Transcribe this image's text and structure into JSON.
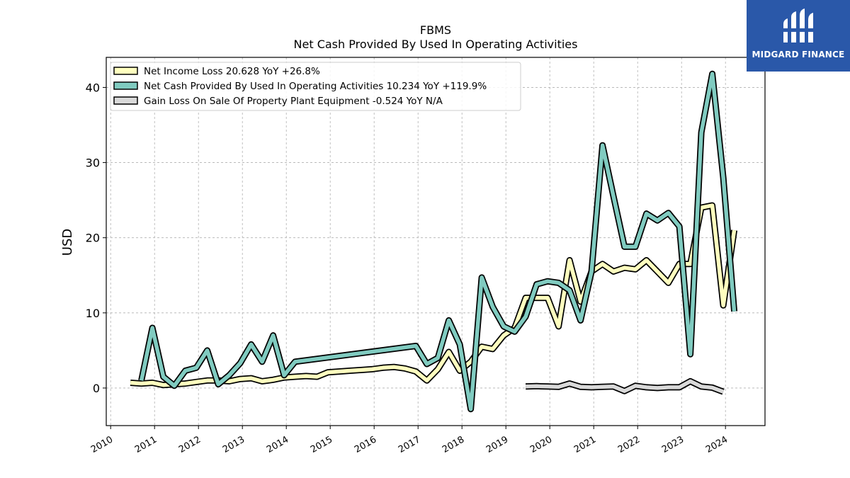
{
  "brand": {
    "name": "MIDGARD FINANCE",
    "icon": "midgard-logo-icon",
    "color": "#2a58a9"
  },
  "chart_data": {
    "type": "line",
    "title": "FBMS",
    "subtitle": "Net Cash Provided By Used In Operating Activities",
    "ylabel": "USD",
    "xlabel": "",
    "xlim": [
      2009.9,
      2024.9
    ],
    "ylim": [
      -5,
      44
    ],
    "yticks": [
      0,
      10,
      20,
      30,
      40
    ],
    "xticks": [
      "2010",
      "2011",
      "2012",
      "2013",
      "2014",
      "2015",
      "2016",
      "2017",
      "2018",
      "2019",
      "2020",
      "2021",
      "2022",
      "2023",
      "2024"
    ],
    "grid": true,
    "legend_position": "top-left",
    "series": [
      {
        "name": "Net Income Loss",
        "legend": "Net Income Loss  20.628 YoY +26.8%",
        "color": "#ffffbf",
        "x": [
          2010.45,
          2010.7,
          2010.95,
          2011.2,
          2011.45,
          2011.7,
          2011.95,
          2012.2,
          2012.45,
          2012.7,
          2012.95,
          2013.2,
          2013.45,
          2013.7,
          2013.95,
          2014.2,
          2014.45,
          2014.7,
          2014.95,
          2015.2,
          2015.45,
          2015.7,
          2015.95,
          2016.2,
          2016.45,
          2016.7,
          2016.95,
          2017.2,
          2017.45,
          2017.7,
          2017.95,
          2018.2,
          2018.45,
          2018.7,
          2018.95,
          2019.2,
          2019.45,
          2019.7,
          2019.95,
          2020.2,
          2020.45,
          2020.7,
          2020.95,
          2021.2,
          2021.45,
          2021.7,
          2021.95,
          2022.2,
          2022.45,
          2022.7,
          2022.95,
          2023.2,
          2023.45,
          2023.7,
          2023.95,
          2024.2
        ],
        "y": [
          0.7,
          0.6,
          0.7,
          0.4,
          0.5,
          0.6,
          0.8,
          1.0,
          1.0,
          0.9,
          1.2,
          1.3,
          0.9,
          1.1,
          1.4,
          1.5,
          1.6,
          1.5,
          2.1,
          2.2,
          2.3,
          2.4,
          2.5,
          2.7,
          2.8,
          2.6,
          2.2,
          1.0,
          2.5,
          4.8,
          2.3,
          3.5,
          5.5,
          5.2,
          7.0,
          8.0,
          12.0,
          12.0,
          12.0,
          8.2,
          17.0,
          11.5,
          15.5,
          16.5,
          15.5,
          16.0,
          15.8,
          17.0,
          15.5,
          14.0,
          16.5,
          16.5,
          24.0,
          24.3,
          11.0,
          21.0
        ]
      },
      {
        "name": "Net Cash Provided By Used In Operating Activities",
        "legend": "Net Cash Provided By Used In Operating Activities  10.234 YoY +119.9%",
        "color": "#80cbc0",
        "x": [
          2010.7,
          2010.95,
          2011.2,
          2011.45,
          2011.7,
          2011.95,
          2012.2,
          2012.45,
          2012.7,
          2012.95,
          2013.2,
          2013.45,
          2013.7,
          2013.95,
          2014.2,
          2016.95,
          2017.2,
          2017.45,
          2017.7,
          2017.95,
          2018.2,
          2018.45,
          2018.7,
          2018.95,
          2019.2,
          2019.45,
          2019.7,
          2019.95,
          2020.2,
          2020.45,
          2020.7,
          2020.95,
          2021.2,
          2021.45,
          2021.7,
          2021.95,
          2022.2,
          2022.45,
          2022.7,
          2022.95,
          2023.2,
          2023.45,
          2023.7,
          2023.95,
          2024.2
        ],
        "y": [
          1.0,
          8.0,
          1.5,
          0.3,
          2.3,
          2.7,
          5.0,
          0.5,
          1.7,
          3.3,
          5.8,
          3.5,
          7.0,
          1.7,
          3.5,
          5.6,
          3.2,
          4.0,
          9.0,
          5.8,
          -2.8,
          14.7,
          10.8,
          8.2,
          7.5,
          9.5,
          13.8,
          14.2,
          14.0,
          13.0,
          9.0,
          15.5,
          32.3,
          25.5,
          18.8,
          18.8,
          23.2,
          22.3,
          23.3,
          21.5,
          4.5,
          34.0,
          41.8,
          28.0,
          10.2
        ]
      },
      {
        "name": "Gain Loss On Sale Of Property Plant Equipment",
        "legend": "Gain Loss On Sale Of Property Plant Equipment  -0.524 YoY N/A",
        "color": "#d9d9d9",
        "x": [
          2019.45,
          2019.7,
          2019.95,
          2020.2,
          2020.45,
          2020.7,
          2020.95,
          2021.2,
          2021.45,
          2021.7,
          2021.95,
          2022.2,
          2022.45,
          2022.7,
          2022.95,
          2023.2,
          2023.45,
          2023.7,
          2023.95
        ],
        "y": [
          0.2,
          0.25,
          0.2,
          0.15,
          0.6,
          0.15,
          0.1,
          0.15,
          0.2,
          -0.4,
          0.3,
          0.1,
          0.0,
          0.1,
          0.1,
          0.9,
          0.2,
          0.05,
          -0.5
        ]
      }
    ]
  }
}
